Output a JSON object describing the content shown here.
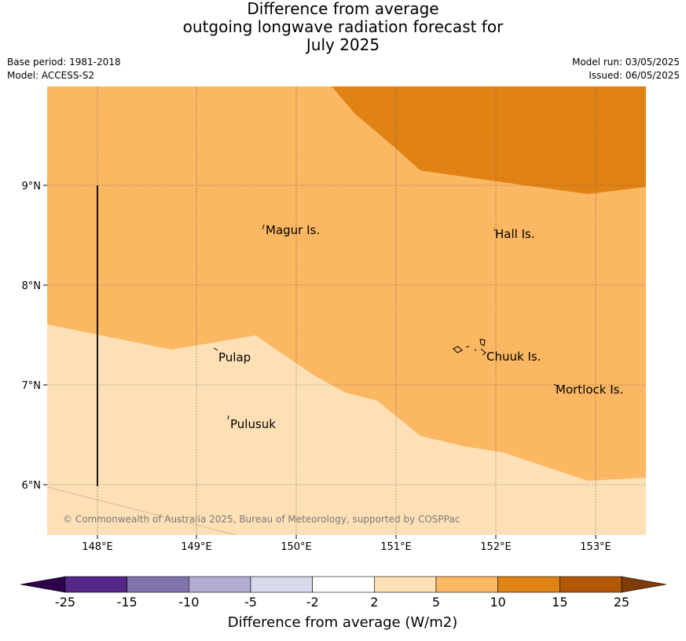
{
  "title": {
    "line1": "Difference from average",
    "line2": "outgoing longwave radiation forecast for",
    "line3": "July 2025"
  },
  "meta": {
    "base_period": "Base period: 1981-2018",
    "model": "Model: ACCESS-S2",
    "model_run": "Model run: 03/05/2025",
    "issued": "Issued: 06/05/2025"
  },
  "map": {
    "lon_labels": [
      "148°E",
      "149°E",
      "150°E",
      "151°E",
      "152°E",
      "153°E"
    ],
    "lat_labels": [
      "9°N",
      "8°N",
      "7°N",
      "6°N"
    ],
    "places": [
      {
        "name": "Magur Is.",
        "key": "magur"
      },
      {
        "name": "Hall Is.",
        "key": "hall"
      },
      {
        "name": "Pulap",
        "key": "pulap"
      },
      {
        "name": "Chuuk Is.",
        "key": "chuuk"
      },
      {
        "name": "Mortlock Is.",
        "key": "mortlock"
      },
      {
        "name": "Pulusuk",
        "key": "pulusuk"
      }
    ],
    "copyright": "© Commonwealth of Australia 2025, Bureau of Meteorology, supported by COSPPac",
    "colors": {
      "band_2_5": "#fde0b6",
      "band_5_10": "#fbb762",
      "band_10_15": "#e08214"
    }
  },
  "colorbar": {
    "title": "Difference from average (W/m2)",
    "ticks": [
      "-25",
      "-15",
      "-10",
      "-5",
      "-2",
      "2",
      "5",
      "10",
      "15",
      "25"
    ],
    "colors": [
      "#2d004b",
      "#542788",
      "#8073ac",
      "#b2abd2",
      "#d8daeb",
      "#ffffff",
      "#fee0b6",
      "#fdb863",
      "#e08214",
      "#b35806",
      "#7f3b08"
    ]
  }
}
